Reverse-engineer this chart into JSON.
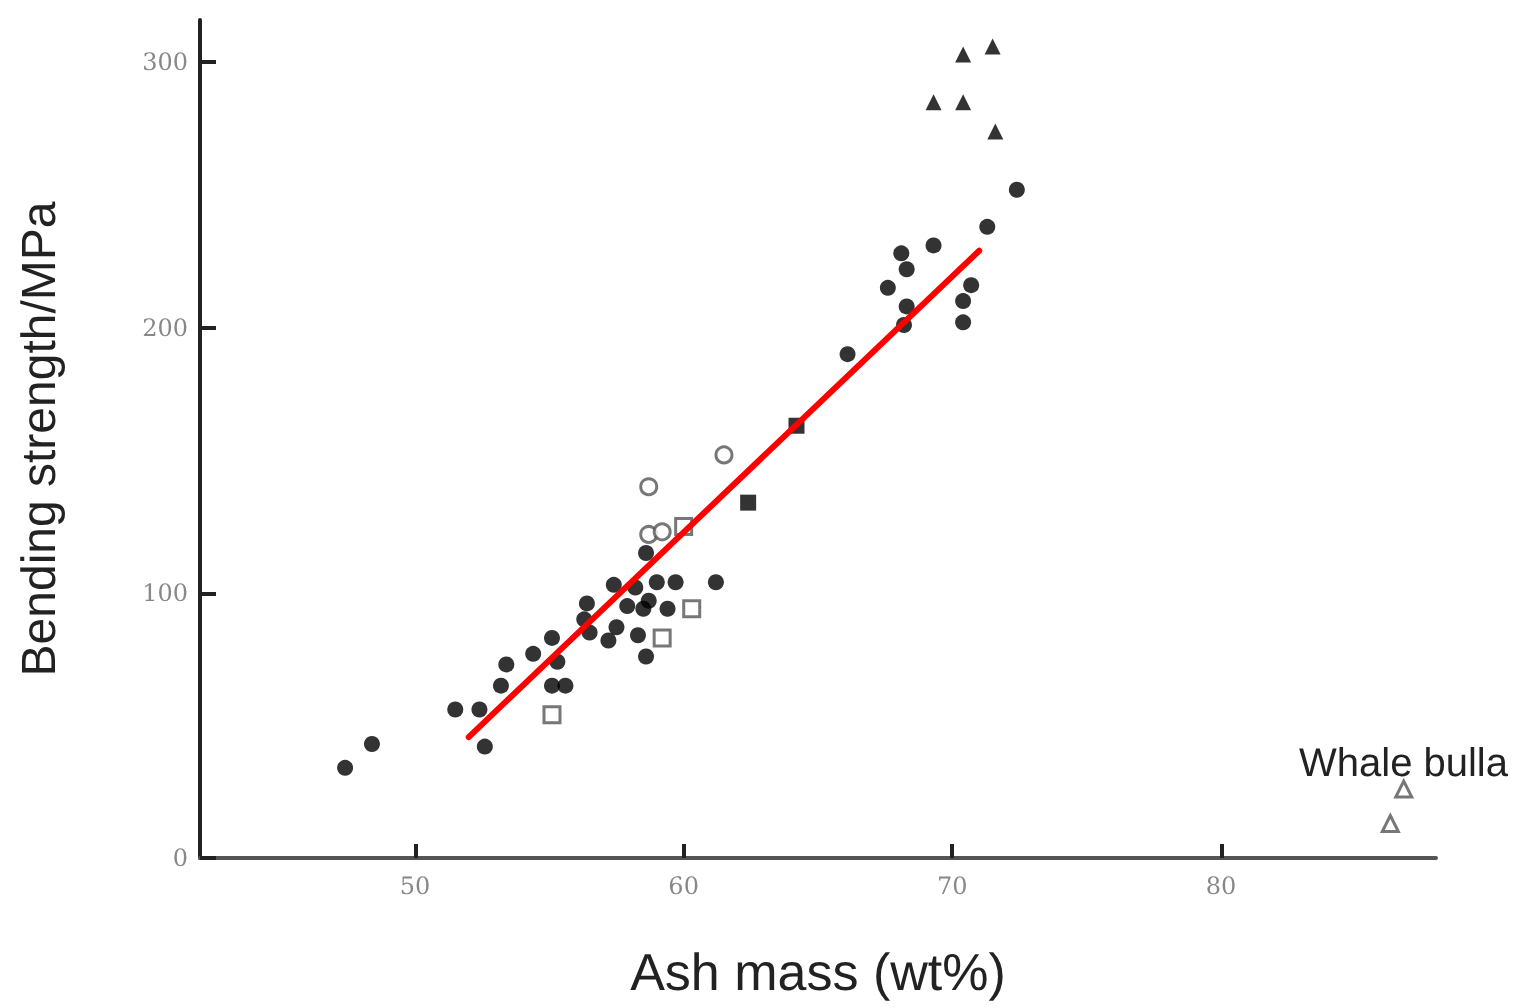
{
  "chart_data": {
    "type": "scatter",
    "xlabel": "Ash mass (wt%)",
    "ylabel": "Bending strength/MPa",
    "xlim": [
      42,
      88
    ],
    "ylim": [
      0,
      316
    ],
    "xticks": [
      50,
      60,
      70,
      80
    ],
    "yticks": [
      0,
      100,
      200,
      300
    ],
    "grid": false,
    "annotations": [
      "Whale bulla"
    ],
    "series": [
      {
        "color": "#000000",
        "marker": "circle",
        "x": [
          47.4,
          48.4,
          52.6,
          51.5,
          52.4,
          53.2,
          53.4,
          54.4,
          55.1,
          55.3,
          55.1,
          55.6,
          56.4,
          56.3,
          56.5,
          57.2,
          57.5,
          57.4,
          58.2,
          57.9,
          58.5,
          58.7,
          58.3,
          58.6,
          59.0,
          59.7,
          59.4,
          58.6,
          61.2,
          72.4,
          71.3,
          69.3,
          68.1,
          68.3,
          67.6,
          68.3,
          68.2,
          70.7,
          70.4,
          70.4,
          66.1
        ],
        "values": [
          34,
          43,
          42,
          56,
          56,
          65,
          73,
          77,
          83,
          74,
          65,
          65,
          96,
          90,
          85,
          82,
          87,
          103,
          102,
          95,
          94,
          97,
          84,
          76,
          104,
          104,
          94,
          115,
          104,
          252,
          238,
          231,
          228,
          222,
          215,
          208,
          201,
          216,
          210,
          202,
          190
        ]
      },
      {
        "color": "#000000",
        "marker": "square",
        "x": [
          62.4,
          64.2
        ],
        "values": [
          134,
          163
        ]
      },
      {
        "color": "#555555",
        "marker": "circle-open",
        "x": [
          58.7,
          61.5,
          58.7,
          59.2
        ],
        "values": [
          140,
          152,
          122,
          123
        ]
      },
      {
        "color": "#555555",
        "marker": "square-open",
        "x": [
          55.1,
          59.2,
          60.3,
          60.0
        ],
        "values": [
          54,
          83,
          94,
          125
        ]
      },
      {
        "color": "#000000",
        "marker": "triangle",
        "x": [
          70.4,
          71.5,
          69.3,
          70.4,
          71.6
        ],
        "values": [
          303,
          306,
          285,
          285,
          274
        ]
      },
      {
        "color": "#555555",
        "marker": "triangle-open",
        "x": [
          86.8,
          86.3
        ],
        "values": [
          26,
          13
        ]
      },
      {
        "type": "line",
        "color": "#ff0000",
        "marker": "none",
        "x": [
          52.0,
          71.0
        ],
        "values": [
          45.6,
          229
        ]
      }
    ]
  }
}
